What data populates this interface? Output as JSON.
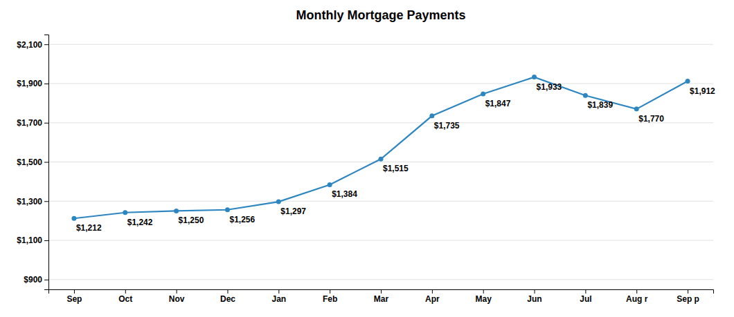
{
  "chart_data": {
    "type": "line",
    "title": "Monthly Mortgage Payments",
    "categories": [
      "Sep",
      "Oct",
      "Nov",
      "Dec",
      "Jan",
      "Feb",
      "Mar",
      "Apr",
      "May",
      "Jun",
      "Jul",
      "Aug r",
      "Sep p"
    ],
    "values": [
      1212,
      1242,
      1250,
      1256,
      1297,
      1384,
      1515,
      1735,
      1847,
      1933,
      1839,
      1770,
      1912
    ],
    "value_labels": [
      "$1,212",
      "$1,242",
      "$1,250",
      "$1,256",
      "$1,297",
      "$1,384",
      "$1,515",
      "$1,735",
      "$1,847",
      "$1,933",
      "$1,839",
      "$1,770",
      "$1,912"
    ],
    "data_labels": true,
    "color": "#2E86C1",
    "marker": "circle",
    "ylim": [
      850,
      2150
    ],
    "yticks": [
      {
        "value": 900,
        "label": "$900"
      },
      {
        "value": 1100,
        "label": "$1,100"
      },
      {
        "value": 1300,
        "label": "$1,300"
      },
      {
        "value": 1500,
        "label": "$1,500"
      },
      {
        "value": 1700,
        "label": "$1,700"
      },
      {
        "value": 1900,
        "label": "$1,900"
      },
      {
        "value": 2100,
        "label": "$2,100"
      }
    ],
    "grid": true
  }
}
